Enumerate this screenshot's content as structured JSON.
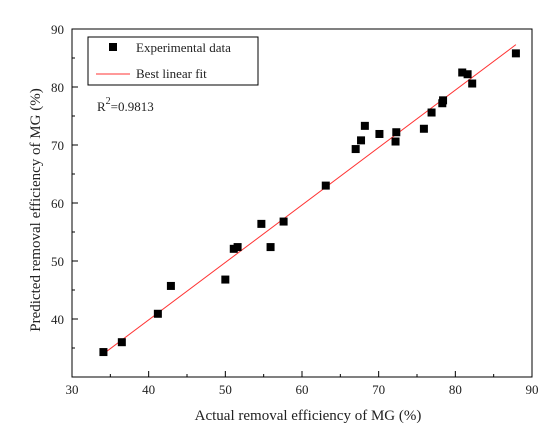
{
  "chart_data": {
    "type": "scatter",
    "xlabel": "Actual removal efficiency of MG (%)",
    "ylabel": "Predicted removal efficiency of MG (%)",
    "xlim": [
      30,
      90
    ],
    "ylim": [
      30,
      90
    ],
    "xticks": [
      "30",
      "40",
      "50",
      "60",
      "70",
      "80",
      "90"
    ],
    "yticks": [
      "40",
      "50",
      "60",
      "70",
      "80",
      "90"
    ],
    "grid": false,
    "legend_position": "top-left",
    "annotation": {
      "base": "R",
      "sup": "2",
      "rest": "=0.9813"
    },
    "series": [
      {
        "name": "Experimental data",
        "marker": "square",
        "color": "#000000",
        "points": [
          [
            34.1,
            34.3
          ],
          [
            36.5,
            36.0
          ],
          [
            41.2,
            40.9
          ],
          [
            42.9,
            45.7
          ],
          [
            50.0,
            46.8
          ],
          [
            51.1,
            52.1
          ],
          [
            51.6,
            52.4
          ],
          [
            54.7,
            56.4
          ],
          [
            55.9,
            52.4
          ],
          [
            57.6,
            56.8
          ],
          [
            63.1,
            63.0
          ],
          [
            67.0,
            69.3
          ],
          [
            67.7,
            70.8
          ],
          [
            68.2,
            73.3
          ],
          [
            70.1,
            71.9
          ],
          [
            72.2,
            70.6
          ],
          [
            72.3,
            72.2
          ],
          [
            75.9,
            72.8
          ],
          [
            76.9,
            75.6
          ],
          [
            78.3,
            77.2
          ],
          [
            78.4,
            77.7
          ],
          [
            80.9,
            82.5
          ],
          [
            81.6,
            82.2
          ],
          [
            82.2,
            80.6
          ],
          [
            87.9,
            85.8
          ]
        ]
      },
      {
        "name": "Best linear fit",
        "kind": "line",
        "color": "#ff3333",
        "x": [
          34.1,
          87.9
        ],
        "y": [
          34.0,
          87.3
        ]
      }
    ]
  }
}
